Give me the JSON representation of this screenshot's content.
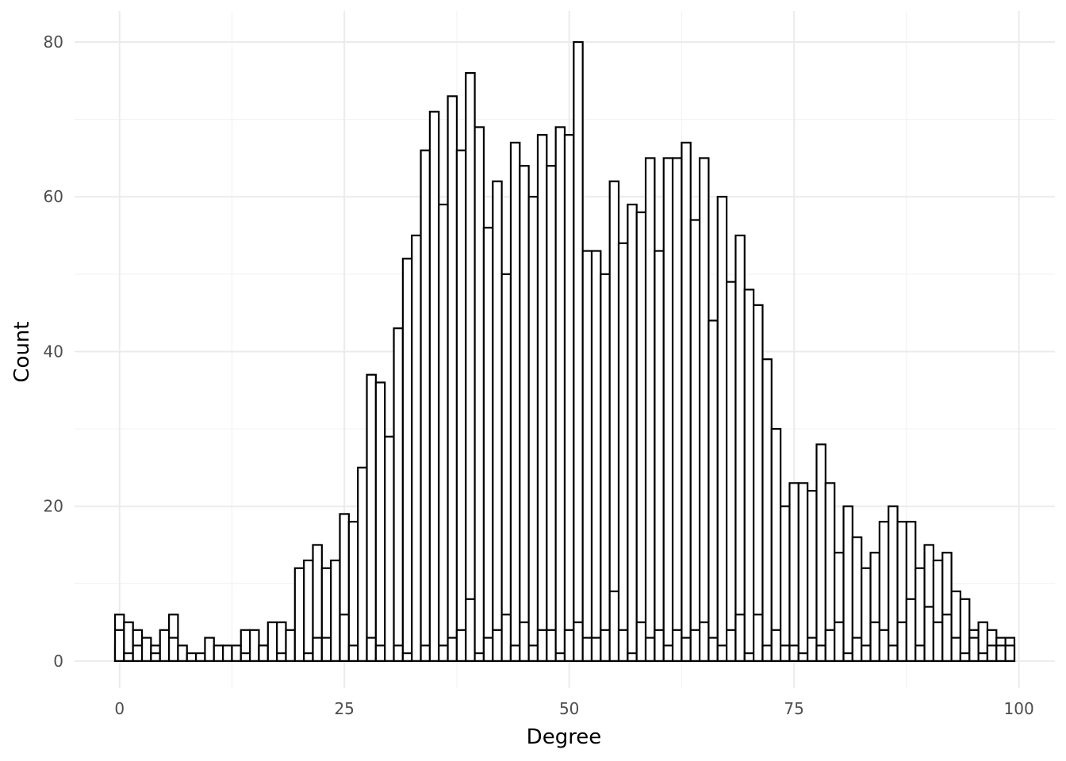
{
  "chart_data": {
    "type": "bar",
    "subtype": "stacked histogram",
    "xlabel": "Degree",
    "ylabel": "Count",
    "xlim": [
      -5,
      104
    ],
    "ylim": [
      -3.5,
      84
    ],
    "x_ticks": [
      0,
      25,
      50,
      75,
      100
    ],
    "y_ticks": [
      0,
      20,
      40,
      60,
      80
    ],
    "grid": true,
    "legend": "none",
    "bar_fill": "#ffffff",
    "bar_outline": "#000000",
    "bins": {
      "start": 0,
      "width": 1,
      "totals": [
        6,
        5,
        4,
        3,
        2,
        4,
        6,
        2,
        1,
        1,
        3,
        2,
        2,
        2,
        4,
        4,
        2,
        5,
        5,
        4,
        12,
        13,
        15,
        12,
        13,
        19,
        18,
        25,
        37,
        36,
        29,
        43,
        52,
        55,
        66,
        71,
        59,
        73,
        66,
        76,
        69,
        56,
        62,
        50,
        67,
        64,
        60,
        68,
        64,
        69,
        68,
        80,
        53,
        53,
        50,
        62,
        54,
        59,
        58,
        65,
        53,
        65,
        65,
        67,
        57,
        65,
        44,
        60,
        49,
        55,
        48,
        46,
        39,
        30,
        20,
        23,
        23,
        22,
        28,
        23,
        14,
        20,
        16,
        12,
        14,
        18,
        20,
        18,
        18,
        12,
        15,
        13,
        14,
        9,
        8,
        4,
        5,
        4,
        3,
        3
      ],
      "inner_layers": [
        [
          2,
          4
        ],
        [
          1
        ],
        [
          2
        ],
        [],
        [
          1
        ],
        [],
        [
          3
        ],
        [],
        [],
        [],
        [],
        [],
        [],
        [],
        [
          1
        ],
        [],
        [
          2
        ],
        [],
        [
          1
        ],
        [],
        [],
        [
          1
        ],
        [
          3
        ],
        [
          3
        ],
        [],
        [
          6
        ],
        [
          2
        ],
        [],
        [
          3
        ],
        [
          2
        ],
        [],
        [
          2
        ],
        [
          1
        ],
        [],
        [
          2
        ],
        [],
        [
          2
        ],
        [
          3
        ],
        [
          4
        ],
        [
          8
        ],
        [
          1
        ],
        [
          3
        ],
        [
          4
        ],
        [
          6
        ],
        [
          2
        ],
        [
          5
        ],
        [
          2
        ],
        [
          4
        ],
        [
          4
        ],
        [
          1
        ],
        [
          4
        ],
        [
          5
        ],
        [
          3
        ],
        [
          3
        ],
        [
          4
        ],
        [
          9
        ],
        [
          4
        ],
        [
          1
        ],
        [
          5
        ],
        [
          3
        ],
        [
          4
        ],
        [
          2
        ],
        [
          4
        ],
        [
          3
        ],
        [
          4
        ],
        [
          5
        ],
        [
          3
        ],
        [
          2
        ],
        [
          4
        ],
        [
          6
        ],
        [
          1
        ],
        [
          6
        ],
        [
          2
        ],
        [
          4
        ],
        [
          2
        ],
        [
          2
        ],
        [
          1
        ],
        [
          3
        ],
        [
          2
        ],
        [
          4
        ],
        [
          5
        ],
        [
          1
        ],
        [
          3
        ],
        [
          2
        ],
        [
          5
        ],
        [
          4
        ],
        [
          2
        ],
        [
          5
        ],
        [
          8
        ],
        [
          2
        ],
        [
          7
        ],
        [
          5
        ],
        [
          6
        ],
        [
          3
        ],
        [
          1
        ],
        [
          3
        ],
        [
          1
        ],
        [
          2
        ],
        [
          2
        ],
        [
          2
        ]
      ]
    }
  }
}
